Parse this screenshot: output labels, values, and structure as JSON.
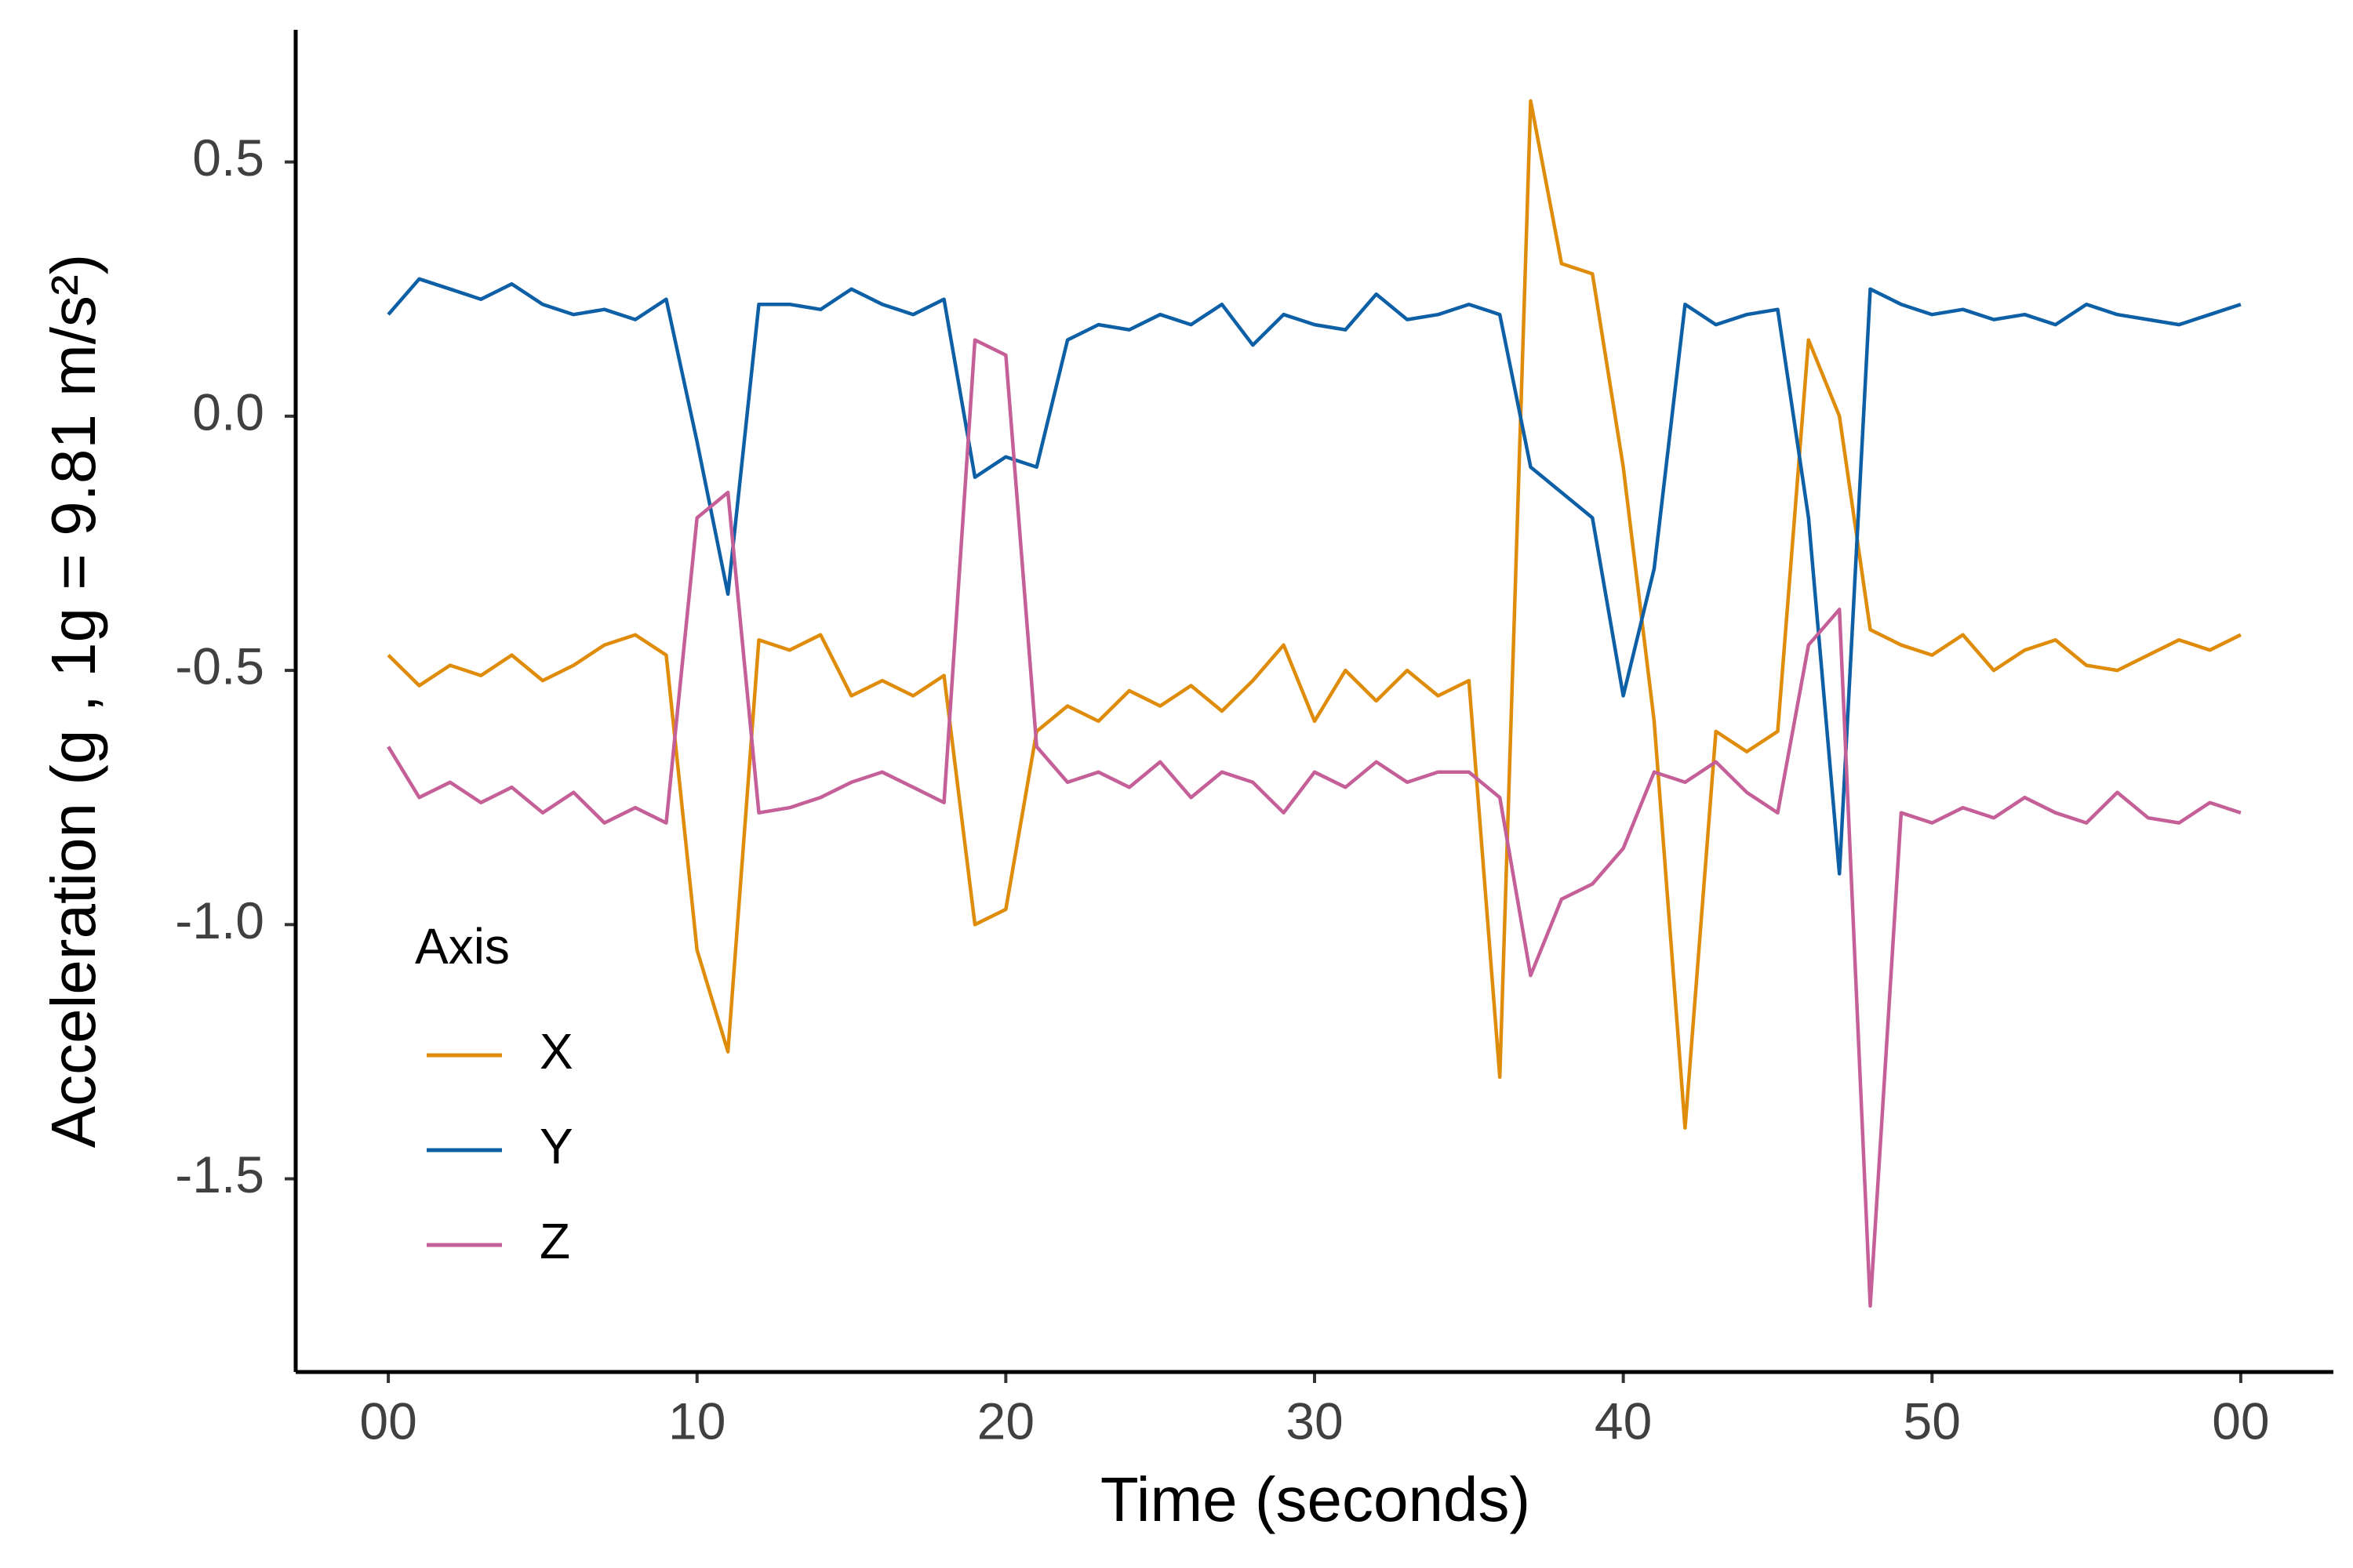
{
  "chart_data": {
    "type": "line",
    "x_label": "Time (seconds)",
    "y_label": "Acceleration (g , 1g = 9.81 m/s²)",
    "legend_title": "Axis",
    "legend": "bottom-left",
    "grid": false,
    "x": [
      0,
      1,
      2,
      3,
      4,
      5,
      6,
      7,
      8,
      9,
      10,
      11,
      12,
      13,
      14,
      15,
      16,
      17,
      18,
      19,
      20,
      21,
      22,
      23,
      24,
      25,
      26,
      27,
      28,
      29,
      30,
      31,
      32,
      33,
      34,
      35,
      36,
      37,
      38,
      39,
      40,
      41,
      42,
      43,
      44,
      45,
      46,
      47,
      48,
      49,
      50,
      51,
      52,
      53,
      54,
      55,
      56,
      57,
      58,
      59,
      60
    ],
    "series": [
      {
        "name": "X",
        "color": "#df8c0b",
        "values": [
          -0.47,
          -0.53,
          -0.49,
          -0.51,
          -0.47,
          -0.52,
          -0.49,
          -0.45,
          -0.43,
          -0.47,
          -1.05,
          -1.25,
          -0.44,
          -0.46,
          -0.43,
          -0.55,
          -0.52,
          -0.55,
          -0.51,
          -1.0,
          -0.97,
          -0.62,
          -0.57,
          -0.6,
          -0.54,
          -0.57,
          -0.53,
          -0.58,
          -0.52,
          -0.45,
          -0.6,
          -0.5,
          -0.56,
          -0.5,
          -0.55,
          -0.52,
          -1.3,
          0.62,
          0.3,
          0.28,
          -0.1,
          -0.6,
          -1.4,
          -0.62,
          -0.66,
          -0.62,
          0.15,
          0.0,
          -0.42,
          -0.45,
          -0.47,
          -0.43,
          -0.5,
          -0.46,
          -0.44,
          -0.49,
          -0.5,
          -0.47,
          -0.44,
          -0.46,
          -0.43
        ]
      },
      {
        "name": "Y",
        "color": "#0d5fa6",
        "values": [
          0.2,
          0.27,
          0.25,
          0.23,
          0.26,
          0.22,
          0.2,
          0.21,
          0.19,
          0.23,
          -0.05,
          -0.35,
          0.22,
          0.22,
          0.21,
          0.25,
          0.22,
          0.2,
          0.23,
          -0.12,
          -0.08,
          -0.1,
          0.15,
          0.18,
          0.17,
          0.2,
          0.18,
          0.22,
          0.14,
          0.2,
          0.18,
          0.17,
          0.24,
          0.19,
          0.2,
          0.22,
          0.2,
          -0.1,
          -0.15,
          -0.2,
          -0.55,
          -0.3,
          0.22,
          0.18,
          0.2,
          0.21,
          -0.2,
          -0.9,
          0.25,
          0.22,
          0.2,
          0.21,
          0.19,
          0.2,
          0.18,
          0.22,
          0.2,
          0.19,
          0.18,
          0.2,
          0.22
        ]
      },
      {
        "name": "Z",
        "color": "#c55f97",
        "values": [
          -0.65,
          -0.75,
          -0.72,
          -0.76,
          -0.73,
          -0.78,
          -0.74,
          -0.8,
          -0.77,
          -0.8,
          -0.2,
          -0.15,
          -0.78,
          -0.77,
          -0.75,
          -0.72,
          -0.7,
          -0.73,
          -0.76,
          0.15,
          0.12,
          -0.65,
          -0.72,
          -0.7,
          -0.73,
          -0.68,
          -0.75,
          -0.7,
          -0.72,
          -0.78,
          -0.7,
          -0.73,
          -0.68,
          -0.72,
          -0.7,
          -0.7,
          -0.75,
          -1.1,
          -0.95,
          -0.92,
          -0.85,
          -0.7,
          -0.72,
          -0.68,
          -0.74,
          -0.78,
          -0.45,
          -0.38,
          -1.75,
          -0.78,
          -0.8,
          -0.77,
          -0.79,
          -0.75,
          -0.78,
          -0.8,
          -0.74,
          -0.79,
          -0.8,
          -0.76,
          -0.78
        ]
      }
    ],
    "xlim": [
      -3,
      63
    ],
    "xticks": [
      {
        "value": 0,
        "label": "00"
      },
      10,
      20,
      30,
      40,
      50,
      {
        "value": 60,
        "label": "00"
      }
    ],
    "ylim": [
      -1.88,
      0.76
    ],
    "yticks": [
      0.5,
      {
        "value": 0,
        "label": "0.0"
      },
      -0.5,
      {
        "value": -1,
        "label": "-1.0"
      },
      -1.5
    ]
  }
}
